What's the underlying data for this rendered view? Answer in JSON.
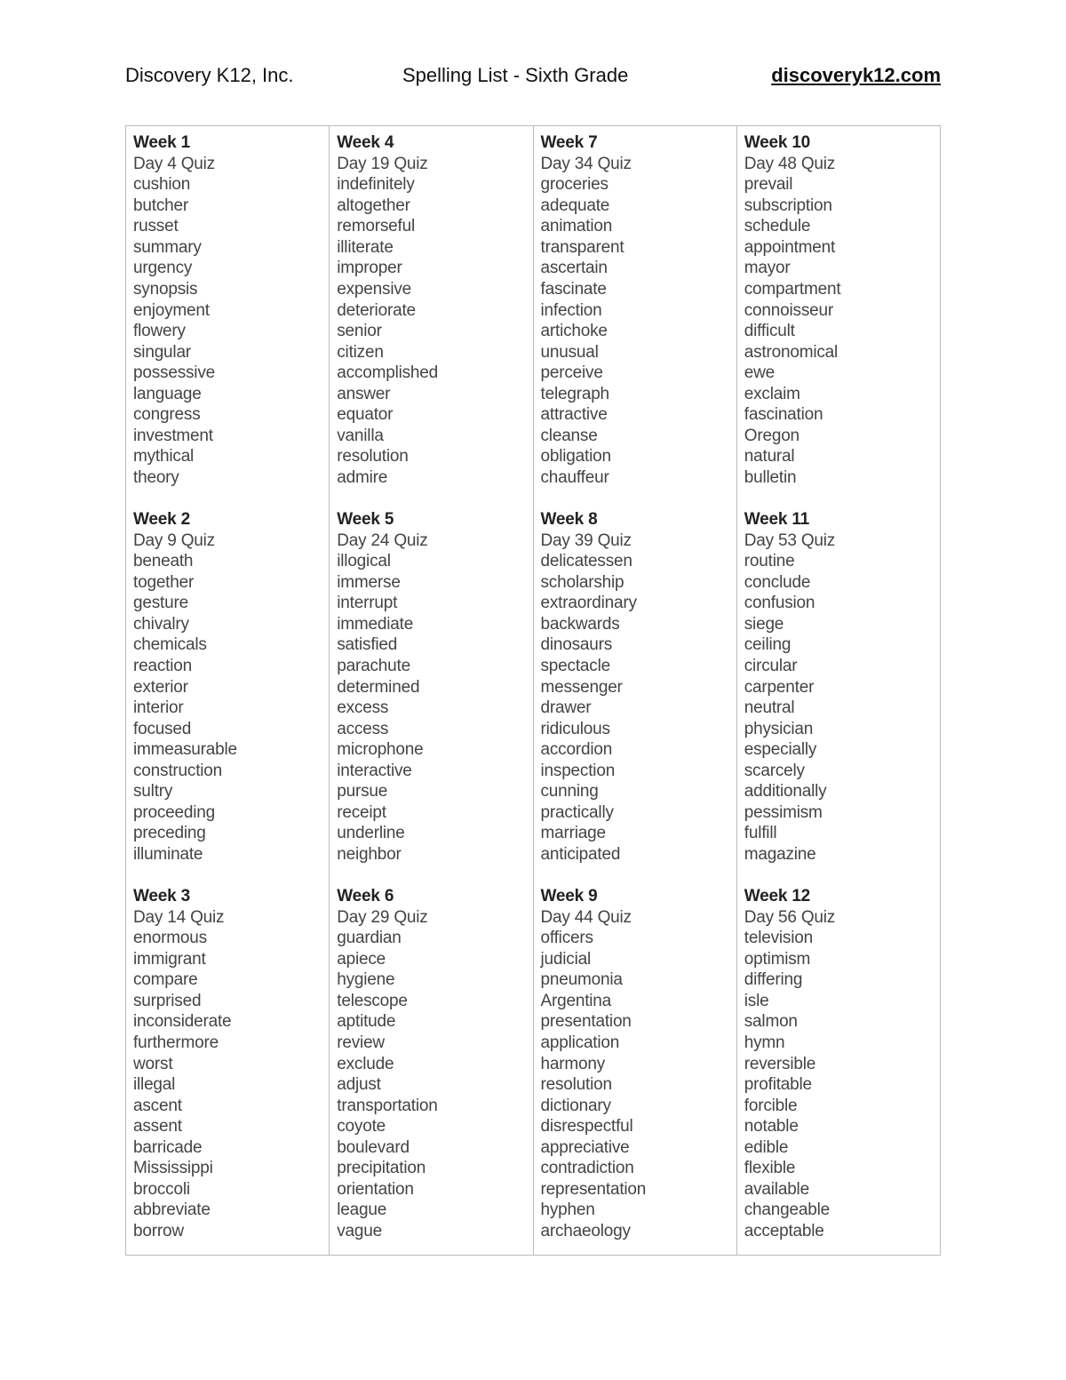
{
  "header": {
    "left": "Discovery K12, Inc.",
    "title": "Spelling List - Sixth Grade",
    "link": "discoveryk12.com"
  },
  "columns": [
    [
      {
        "week": "Week 1",
        "quiz": "Day 4 Quiz",
        "words": [
          "cushion",
          "butcher",
          "russet",
          "summary",
          "urgency",
          "synopsis",
          "enjoyment",
          "flowery",
          "singular",
          "possessive",
          "language",
          "congress",
          "investment",
          "mythical",
          "theory"
        ]
      },
      {
        "week": "Week 2",
        "quiz": "Day 9 Quiz",
        "words": [
          "beneath",
          "together",
          "gesture",
          "chivalry",
          "chemicals",
          "reaction",
          "exterior",
          "interior",
          "focused",
          "immeasurable",
          "construction",
          "sultry",
          "proceeding",
          "preceding",
          "illuminate"
        ]
      },
      {
        "week": "Week 3",
        "quiz": "Day 14 Quiz",
        "words": [
          "enormous",
          "immigrant",
          "compare",
          "surprised",
          "inconsiderate",
          "furthermore",
          "worst",
          "illegal",
          "ascent",
          "assent",
          "barricade",
          "Mississippi",
          "broccoli",
          "abbreviate",
          "borrow"
        ]
      }
    ],
    [
      {
        "week": "Week 4",
        "quiz": "Day 19 Quiz",
        "words": [
          "indefinitely",
          "altogether",
          "remorseful",
          "illiterate",
          "improper",
          "expensive",
          "deteriorate",
          "senior",
          "citizen",
          "accomplished",
          "answer",
          "equator",
          "vanilla",
          "resolution",
          "admire"
        ]
      },
      {
        "week": "Week 5",
        "quiz": "Day 24 Quiz",
        "words": [
          "illogical",
          "immerse",
          "interrupt",
          "immediate",
          "satisfied",
          "parachute",
          "determined",
          "excess",
          "access",
          "microphone",
          "interactive",
          "pursue",
          "receipt",
          "underline",
          "neighbor"
        ]
      },
      {
        "week": "Week 6",
        "quiz": "Day 29 Quiz",
        "words": [
          "guardian",
          "apiece",
          "hygiene",
          "telescope",
          "aptitude",
          "review",
          "exclude",
          "adjust",
          "transportation",
          "coyote",
          "boulevard",
          "precipitation",
          "orientation",
          "league",
          "vague"
        ]
      }
    ],
    [
      {
        "week": "Week 7",
        "quiz": "Day 34 Quiz",
        "words": [
          "groceries",
          "adequate",
          "animation",
          "transparent",
          "ascertain",
          "fascinate",
          "infection",
          "artichoke",
          "unusual",
          "perceive",
          "telegraph",
          "attractive",
          "cleanse",
          "obligation",
          "chauffeur"
        ]
      },
      {
        "week": "Week 8",
        "quiz": "Day 39 Quiz",
        "words": [
          "delicatessen",
          "scholarship",
          "extraordinary",
          "backwards",
          "dinosaurs",
          "spectacle",
          "messenger",
          "drawer",
          "ridiculous",
          "accordion",
          "inspection",
          "cunning",
          "practically",
          "marriage",
          "anticipated"
        ]
      },
      {
        "week": "Week 9",
        "quiz": "Day 44 Quiz",
        "words": [
          "officers",
          "judicial",
          "pneumonia",
          "Argentina",
          "presentation",
          "application",
          "harmony",
          "resolution",
          "dictionary",
          "disrespectful",
          "appreciative",
          "contradiction",
          "representation",
          "hyphen",
          "archaeology"
        ]
      }
    ],
    [
      {
        "week": "Week 10",
        "quiz": "Day 48 Quiz",
        "words": [
          "prevail",
          "subscription",
          "schedule",
          "appointment",
          "mayor",
          "compartment",
          "connoisseur",
          "difficult",
          "astronomical",
          "ewe",
          "exclaim",
          "fascination",
          "Oregon",
          "natural",
          "bulletin"
        ]
      },
      {
        "week": "Week 11",
        "quiz": "Day 53 Quiz",
        "words": [
          "routine",
          "conclude",
          "confusion",
          "siege",
          "ceiling",
          "circular",
          "carpenter",
          "neutral",
          "physician",
          "especially",
          "scarcely",
          "additionally",
          "pessimism",
          "fulfill",
          "magazine"
        ]
      },
      {
        "week": "Week 12",
        "quiz": "Day 56 Quiz",
        "words": [
          "television",
          "optimism",
          "differing",
          "isle",
          "salmon",
          "hymn",
          "reversible",
          "profitable",
          "forcible",
          "notable",
          "edible",
          "flexible",
          "available",
          "changeable",
          "acceptable"
        ]
      }
    ]
  ]
}
